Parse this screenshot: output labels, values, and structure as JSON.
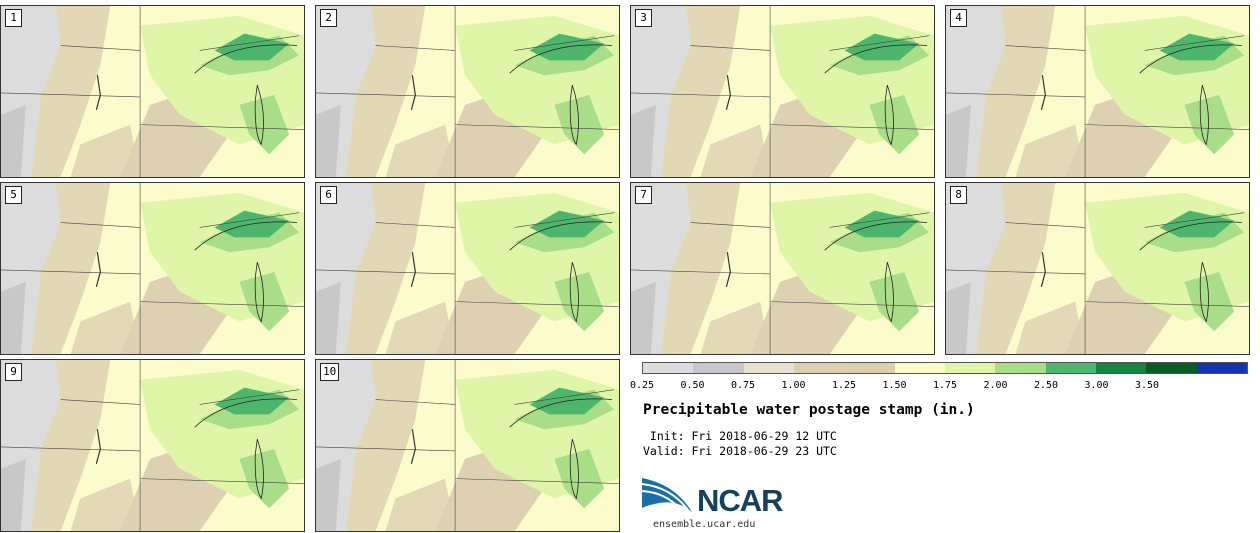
{
  "panels": [
    "1",
    "2",
    "3",
    "4",
    "5",
    "6",
    "7",
    "8",
    "9",
    "10"
  ],
  "colorbar": {
    "colors": [
      "#dcdcdc",
      "#c8c8c8",
      "#e6e2d2",
      "#ddd1b2",
      "#dccfac",
      "#fbfbcc",
      "#dff5a8",
      "#a9dd88",
      "#4db56c",
      "#14853e",
      "#0a5c27",
      "#1433b2"
    ],
    "ticks": [
      "0.25",
      "0.50",
      "0.75",
      "1.00",
      "1.25",
      "1.50",
      "1.75",
      "2.00",
      "2.50",
      "3.00",
      "3.50"
    ]
  },
  "title": "Precipitable water postage stamp (in.)",
  "init": " Init: Fri 2018-06-29 12 UTC",
  "valid": "Valid: Fri 2018-06-29 23 UTC",
  "logo": {
    "name": "NCAR",
    "url": "ensemble.ucar.edu"
  }
}
